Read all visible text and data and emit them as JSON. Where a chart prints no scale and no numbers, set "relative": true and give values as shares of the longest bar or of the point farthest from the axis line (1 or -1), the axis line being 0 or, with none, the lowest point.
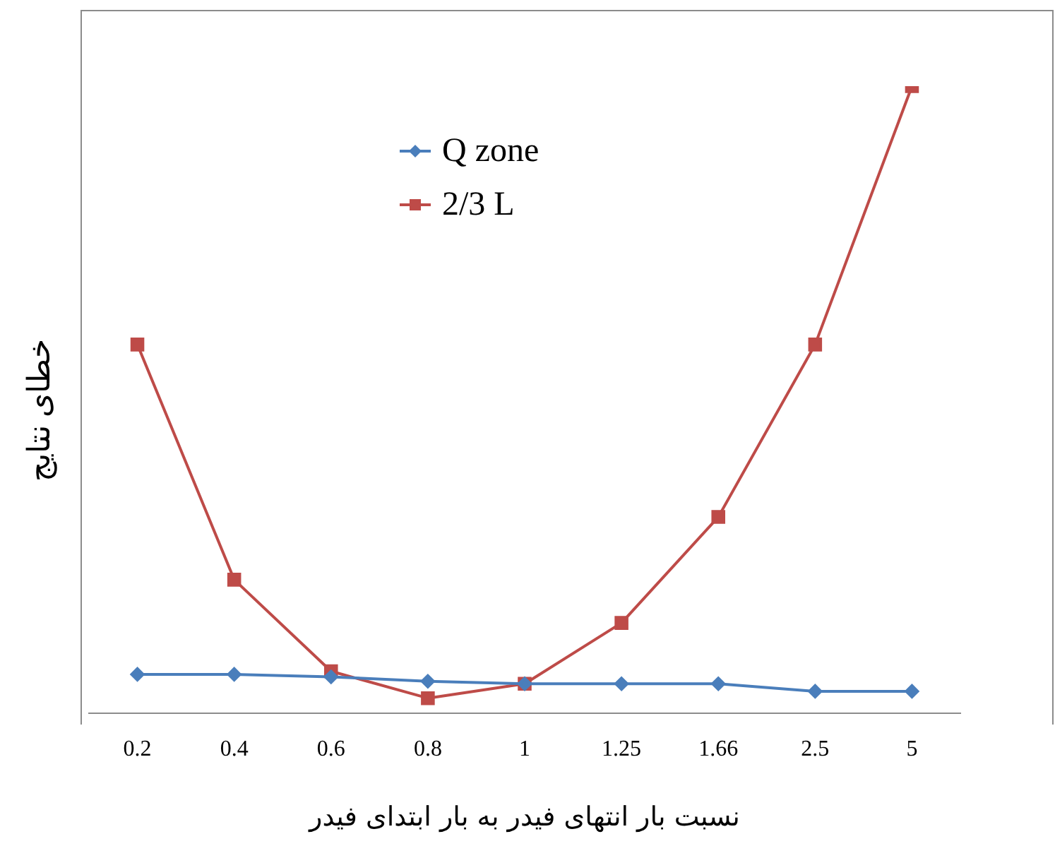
{
  "chart_data": {
    "type": "line",
    "relative": true,
    "xlabel": "نسبت بار انتهای فیدر به بار ابتدای فیدر",
    "ylabel": "خطای نتایج",
    "categories": [
      "0.2",
      "0.4",
      "0.6",
      "0.8",
      "1",
      "1.25",
      "1.66",
      "2.5",
      "5"
    ],
    "legend": "top",
    "grid": false,
    "line_style": "solid",
    "series": [
      {
        "name": "Q zone",
        "color": "#4a7ebb",
        "marker": "diamond",
        "values": [
          0.062,
          0.062,
          0.058,
          0.051,
          0.047,
          0.047,
          0.047,
          0.035,
          0.035
        ]
      },
      {
        "name": "2/3 L",
        "color": "#be4b48",
        "marker": "square",
        "values": [
          0.588,
          0.213,
          0.067,
          0.024,
          0.047,
          0.144,
          0.313,
          0.588,
          1
        ]
      }
    ]
  }
}
